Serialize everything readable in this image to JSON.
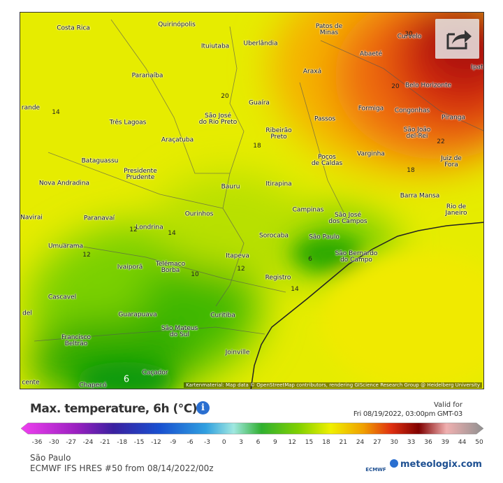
{
  "map": {
    "labels": [
      "Costa Rica",
      "Quirinópolis",
      "Patos de\nMinas",
      "Curvelo",
      "Ituiutaba",
      "Uberlândia",
      "Abaeté",
      "Ipat",
      "Paranaíba",
      "Araxá",
      "Belo Horizonte",
      "rande",
      "Guaíra",
      "Formiga",
      "Congonhas",
      "Piranga",
      "São José\ndo Rio Preto",
      "Passos",
      "Três Lagoas",
      "Ribeirão\nPreto",
      "São João\ndel-Rei",
      "Araçatuba",
      "Varginha",
      "Poços\nde Caldas",
      "Juiz de Fora",
      "Bataguassu",
      "Presidente\nPrudente",
      "Nova Andradina",
      "Bauru",
      "Itirapina",
      "Barra Mansa",
      "Navirai",
      "Paranavaí",
      "Ourinhos",
      "Campinas",
      "São José\ndos Campos",
      "Rio de Janeiro",
      "Londrina",
      "Sorocaba",
      "São Paulo",
      "Umuarama",
      "São Bernardo\ndo Campo",
      "Telêmaco\nBorba",
      "Ivaiporã",
      "Itapeva",
      "Registro",
      "Cascavel",
      "del",
      "Guarapuava",
      "Curitiba",
      "São Mateus\ndo Sul",
      "Francisco\nBeltrão",
      "Joinville",
      "Caçador",
      "cente",
      "Chapecó"
    ],
    "isotherms": [
      "30",
      "20",
      "18",
      "20",
      "22",
      "18",
      "14",
      "12",
      "14",
      "12",
      "6",
      "10",
      "12",
      "14",
      "6"
    ],
    "attribution": "Kartenmaterial: Map data © OpenStreetMap contributors, rendering GIScience Research Group @ Heidelberg University"
  },
  "legend": {
    "title": "Max. temperature, 6h (°C)",
    "valid_label": "Valid for",
    "valid_time": "Fri 08/19/2022, 03:00pm GMT-03",
    "ticks": [
      -36,
      -30,
      -27,
      -24,
      -21,
      -18,
      -15,
      -12,
      -9,
      -6,
      -3,
      0,
      3,
      6,
      9,
      12,
      15,
      18,
      21,
      24,
      27,
      30,
      33,
      36,
      39,
      44,
      50
    ]
  },
  "footer": {
    "region": "São Paulo",
    "model": "ECMWF IFS HRES #50 from 08/14/2022/00z",
    "ecmwf": "ECMWF",
    "brand": "meteologix.com"
  }
}
